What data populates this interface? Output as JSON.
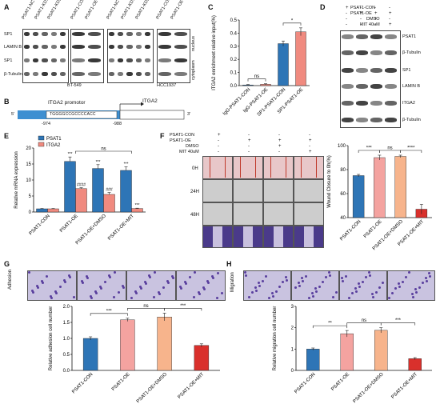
{
  "panels": {
    "A": "A",
    "B": "B",
    "C": "C",
    "D": "D",
    "E": "E",
    "F": "F",
    "G": "G",
    "H": "H"
  },
  "panelA": {
    "lanes_bt549": [
      "PSAT1-NC",
      "PSAT1-KD1",
      "PSAT1-KD2",
      "PSAT1-CON",
      "PSAT1-OE"
    ],
    "lanes_hcc1937": [
      "PSAT1-NC",
      "PSAT1-KD1",
      "PSAT1-KD2",
      "PSAT1-CON",
      "PSAT1-OE"
    ],
    "rows": [
      "SP1",
      "LAMIN B",
      "SP1",
      "β-Tubulin"
    ],
    "fractions": [
      "nucleus",
      "cytoplasm"
    ],
    "cell_lines": [
      "BT-549",
      "HCC1937"
    ]
  },
  "panelB": {
    "promoter_label": "ITGA2 promotor",
    "gene_label": "ITGA2",
    "five_prime": "5'",
    "three_prime": "3'",
    "sequence": "TGGGGCCGCCCCACC",
    "pos_left": "-974",
    "pos_right": "-988"
  },
  "panelD": {
    "conditions": [
      "PSAT1-CON",
      "PSAT1-OE",
      "DMSO",
      "MIT 40uM"
    ],
    "signs": [
      [
        "+",
        "-",
        "-",
        "-"
      ],
      [
        "-",
        "+",
        "+",
        "+"
      ],
      [
        "-",
        "-",
        "+",
        "-"
      ],
      [
        "-",
        "-",
        "-",
        "+"
      ]
    ],
    "rows": [
      "PSAT1",
      "β-Tubulin",
      "SP1",
      "LAMIN B",
      "ITGA2",
      "β-Tubulin"
    ]
  },
  "panelF": {
    "conditions": [
      "PSAT1-CON",
      "PSAT1-OE",
      "DMSO",
      "MIT 40uM"
    ],
    "signs": [
      [
        "+",
        "-",
        "-",
        "-"
      ],
      [
        "-",
        "+",
        "+",
        "+"
      ],
      [
        "-",
        "-",
        "+",
        "-"
      ],
      [
        "-",
        "-",
        "-",
        "+"
      ]
    ],
    "rows": [
      "0H",
      "24H",
      "48H"
    ]
  },
  "panelG": {
    "image_label": "Adhesion"
  },
  "panelH": {
    "image_label": "Migration"
  },
  "chart_data": [
    {
      "panel": "C",
      "type": "bar",
      "categories": [
        "IgG-PSAT1-CON",
        "IgG-PSAT1-OE",
        "SP1-PSAT1-CON",
        "SP1-PSAT1-OE"
      ],
      "values": [
        0.005,
        0.01,
        0.32,
        0.41
      ],
      "errors": [
        0.003,
        0.004,
        0.02,
        0.03
      ],
      "colors": [
        "#2e75b6",
        "#f08a7f",
        "#2e75b6",
        "#f08a7f"
      ],
      "ylabel": "ITGA2 enrichment relative input(%)",
      "ylim": [
        0,
        0.5
      ],
      "yticks": [
        "0.0",
        "0.1",
        "0.2",
        "0.3",
        "0.4",
        "0.5"
      ],
      "annotations": [
        {
          "pair": [
            0,
            1
          ],
          "text": "ns"
        },
        {
          "pair": [
            2,
            3
          ],
          "text": "*"
        }
      ]
    },
    {
      "panel": "E",
      "type": "bar",
      "categories": [
        "PSAT1-CON",
        "PSAT1-OE",
        "PSAT1-OE+DMSO",
        "PSAT1-OE+MIT"
      ],
      "series": [
        {
          "name": "PSAT1",
          "color": "#2e75b6",
          "values": [
            1,
            15.8,
            13.6,
            13.0
          ],
          "errors": [
            0.1,
            1.4,
            1.2,
            1.1
          ],
          "marks": [
            "",
            "***",
            "***",
            "***"
          ]
        },
        {
          "name": "ITGA2",
          "color": "#f08a7f",
          "values": [
            1,
            7.3,
            5.5,
            1.1
          ],
          "errors": [
            0.1,
            0.3,
            0.6,
            0.1
          ],
          "marks": [
            "",
            "####",
            "###",
            "***"
          ]
        }
      ],
      "ylabel": "Relative mRNA expression",
      "ylim": [
        0,
        20
      ],
      "yticks": [
        "0",
        "5",
        "10",
        "15",
        "20"
      ],
      "annotations": [
        {
          "text": "ns"
        }
      ],
      "legend": "top-left"
    },
    {
      "panel": "F",
      "type": "bar",
      "categories": [
        "PSAT1-CON",
        "PSAT1-OE",
        "PSAT1-OE+DMSO",
        "PSAT1-OE+MIT"
      ],
      "values": [
        75,
        90,
        91,
        47
      ],
      "errors": [
        1,
        2,
        1,
        4
      ],
      "colors": [
        "#2e75b6",
        "#f4a3a0",
        "#f7b48c",
        "#d9302c"
      ],
      "ylabel": "Wound Closure to 0h(%)",
      "ylim": [
        40,
        100
      ],
      "yticks": [
        "40",
        "60",
        "80",
        "100"
      ],
      "annotations": [
        {
          "pair": [
            0,
            1
          ],
          "text": "***"
        },
        {
          "pair": [
            1,
            2
          ],
          "text": "ns"
        },
        {
          "pair": [
            2,
            3
          ],
          "text": "****"
        }
      ]
    },
    {
      "panel": "G",
      "type": "bar",
      "categories": [
        "PSAT1-CON",
        "PSAT1-OE",
        "PSAT1-OE+DMSO",
        "PSAT1-OE+MIT"
      ],
      "values": [
        1.0,
        1.58,
        1.67,
        0.78
      ],
      "errors": [
        0.05,
        0.05,
        0.12,
        0.05
      ],
      "colors": [
        "#2e75b6",
        "#f4a3a0",
        "#f7b48c",
        "#d9302c"
      ],
      "ylabel": "Relative adhesion cell number",
      "ylim": [
        0,
        2.0
      ],
      "yticks": [
        "0.0",
        "0.5",
        "1.0",
        "1.5",
        "2.0"
      ],
      "annotations": [
        {
          "pair": [
            0,
            1
          ],
          "text": "***"
        },
        {
          "pair": [
            1,
            2
          ],
          "text": "ns"
        },
        {
          "pair": [
            2,
            3
          ],
          "text": "***"
        }
      ]
    },
    {
      "panel": "H",
      "type": "bar",
      "categories": [
        "PSAT1-CON",
        "PSAT1-OE",
        "PSAT1-OE+DMSO",
        "PSAT1-OE+MIT"
      ],
      "values": [
        1.0,
        1.72,
        1.88,
        0.55
      ],
      "errors": [
        0.05,
        0.15,
        0.12,
        0.05
      ],
      "colors": [
        "#2e75b6",
        "#f4a3a0",
        "#f7b48c",
        "#d9302c"
      ],
      "ylabel": "Relative migration cell number",
      "ylim": [
        0,
        3
      ],
      "yticks": [
        "0",
        "1",
        "2",
        "3"
      ],
      "annotations": [
        {
          "pair": [
            0,
            1
          ],
          "text": "**"
        },
        {
          "pair": [
            1,
            2
          ],
          "text": "ns"
        },
        {
          "pair": [
            2,
            3
          ],
          "text": "***"
        }
      ]
    }
  ]
}
